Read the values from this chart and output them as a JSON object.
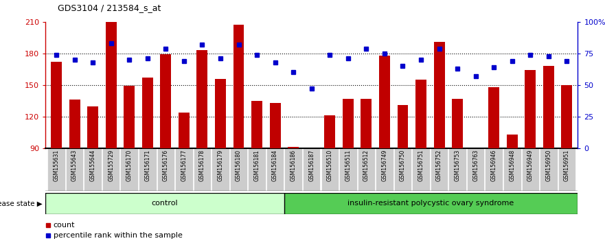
{
  "title": "GDS3104 / 213584_s_at",
  "samples": [
    "GSM155631",
    "GSM155643",
    "GSM155644",
    "GSM155729",
    "GSM156170",
    "GSM156171",
    "GSM156176",
    "GSM156177",
    "GSM156178",
    "GSM156179",
    "GSM156180",
    "GSM156181",
    "GSM156184",
    "GSM156186",
    "GSM156187",
    "GSM156510",
    "GSM156511",
    "GSM156512",
    "GSM156749",
    "GSM156750",
    "GSM156751",
    "GSM156752",
    "GSM156753",
    "GSM156763",
    "GSM156946",
    "GSM156948",
    "GSM156949",
    "GSM156950",
    "GSM156951"
  ],
  "counts": [
    172,
    136,
    130,
    210,
    149,
    157,
    179,
    124,
    183,
    156,
    207,
    135,
    133,
    91,
    4,
    121,
    137,
    137,
    178,
    131,
    155,
    191,
    137,
    4,
    148,
    103,
    164,
    168,
    150
  ],
  "percentiles": [
    74,
    70,
    68,
    83,
    70,
    71,
    79,
    69,
    82,
    71,
    82,
    74,
    68,
    60,
    47,
    74,
    71,
    79,
    75,
    65,
    70,
    79,
    63,
    57,
    64,
    69,
    74,
    73,
    69
  ],
  "control_count": 13,
  "disease_count": 16,
  "control_label": "control",
  "disease_label": "insulin-resistant polycystic ovary syndrome",
  "disease_state_label": "disease state",
  "y_min": 90,
  "y_max": 210,
  "y_ticks": [
    90,
    120,
    150,
    180,
    210
  ],
  "right_y_ticks": [
    0,
    25,
    50,
    75,
    100
  ],
  "right_y_labels": [
    "0",
    "25",
    "50",
    "75",
    "100%"
  ],
  "bar_color": "#c00000",
  "dot_color": "#0000cc",
  "control_bg": "#ccffcc",
  "disease_bg": "#55cc55",
  "legend_count_label": "count",
  "legend_pct_label": "percentile rank within the sample",
  "tick_label_color": "#cc0000",
  "right_tick_color": "#0000cc",
  "xtick_bg": "#cccccc"
}
